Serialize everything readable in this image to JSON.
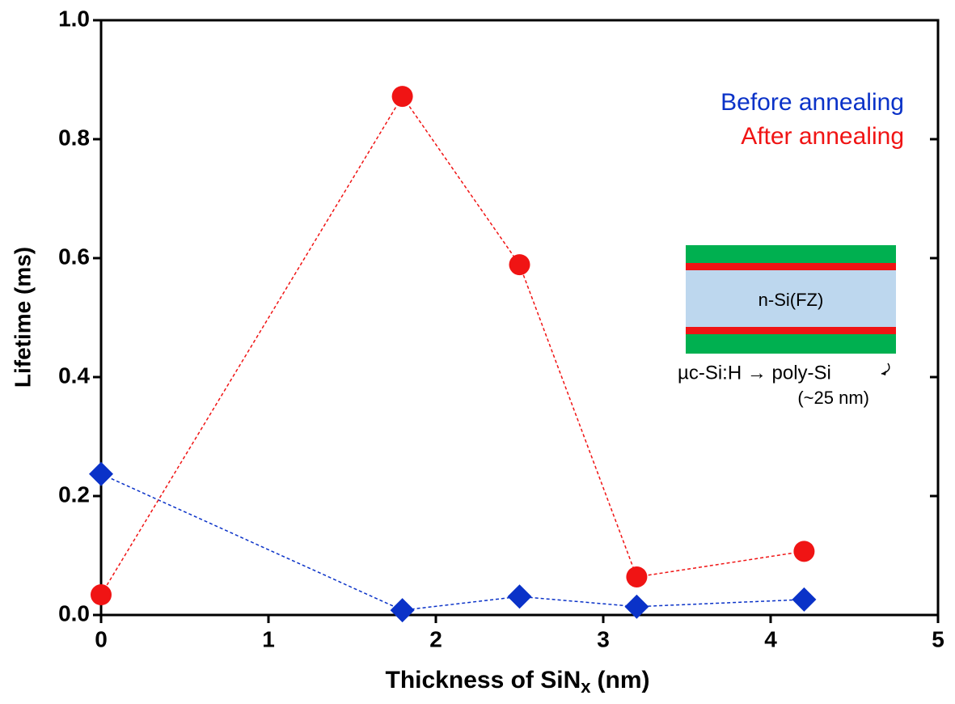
{
  "chart_data": {
    "type": "scatter-line",
    "xlabel": [
      "Thickness of SiN",
      "x",
      "(nm)"
    ],
    "ylabel": "Lifetime (ms)",
    "xlim": [
      0,
      5
    ],
    "xticks": [
      0,
      1,
      2,
      3,
      4,
      5
    ],
    "ylim": [
      0,
      1
    ],
    "yticks": [
      {
        "value": 0,
        "label": "0.0"
      },
      0.2,
      0.4,
      0.6,
      0.8,
      {
        "value": 1,
        "label": "1.0"
      }
    ],
    "x": [
      0,
      1.8,
      2.5,
      3.2,
      4.2
    ],
    "series": [
      {
        "name": "Before annealing",
        "color": "#0a32c8",
        "marker": "diamond",
        "values": [
          0.237,
          0.008,
          0.031,
          0.014,
          0.026
        ]
      },
      {
        "name": "After annealing",
        "color": "#f01414",
        "marker": "circle",
        "values": [
          0.034,
          0.872,
          0.589,
          0.064,
          0.107
        ]
      }
    ],
    "legend": "upper right",
    "annotations": {
      "core": "n-Si(FZ)",
      "layer": "µc-Si:H → poly-Si",
      "thickness": "(~25 nm)"
    }
  }
}
